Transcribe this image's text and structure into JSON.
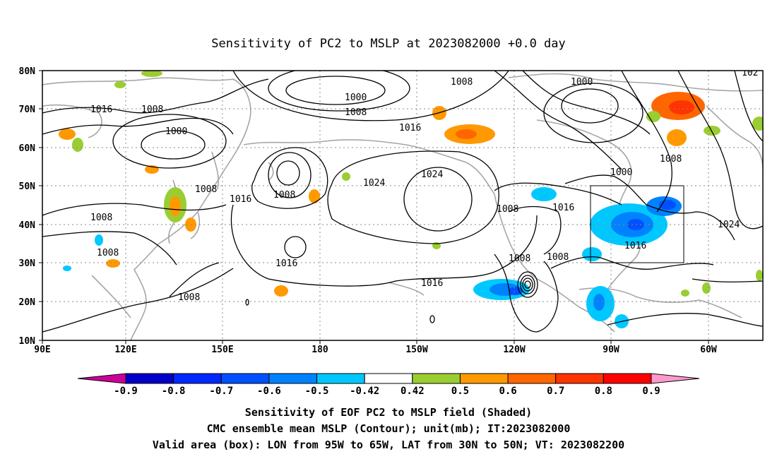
{
  "title": "Sensitivity of PC2 to MSLP at 2023082000 +0.0 day",
  "map": {
    "lon_ticks": [
      "90E",
      "120E",
      "150E",
      "180",
      "150W",
      "120W",
      "90W",
      "60W"
    ],
    "lat_ticks": [
      "80N",
      "70N",
      "60N",
      "50N",
      "40N",
      "30N",
      "20N",
      "10N"
    ],
    "contour_labels": [
      "1016",
      "1008",
      "1000",
      "1008",
      "1008",
      "1000",
      "1008",
      "1016",
      "1024",
      "1024",
      "1008",
      "1008",
      "1016",
      "1008",
      "1016",
      "1016",
      "1008",
      "1008",
      "1016",
      "1008",
      "1000",
      "1008",
      "1000",
      "1016",
      "1024",
      "102"
    ]
  },
  "colorbar": {
    "labels": [
      "-0.9",
      "-0.8",
      "-0.7",
      "-0.6",
      "-0.5",
      "-0.42",
      "0.42",
      "0.5",
      "0.6",
      "0.7",
      "0.8",
      "0.9"
    ],
    "colors": [
      "#cc0099",
      "#0000c8",
      "#0028ff",
      "#0050ff",
      "#0082ff",
      "#00c8ff",
      "#ffffff",
      "#9acd32",
      "#ff9900",
      "#ff6600",
      "#ff3300",
      "#ff0000",
      "#ff99cc"
    ]
  },
  "footer": {
    "line1": "Sensitivity of EOF PC2 to MSLP field (Shaded)",
    "line2": "CMC ensemble mean MSLP (Contour); unit(mb); IT:2023082000",
    "line3": "Valid area (box): LON from 95W to 65W, LAT from 30N to 50N; VT: 2023082200"
  }
}
